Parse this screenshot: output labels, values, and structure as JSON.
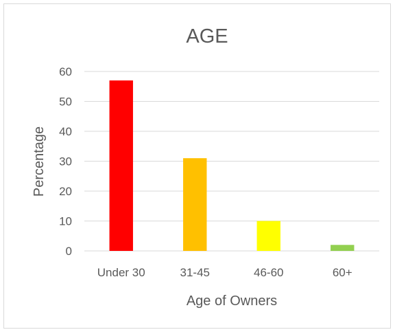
{
  "chart_data": {
    "type": "bar",
    "title": "AGE",
    "xlabel": "Age of Owners",
    "ylabel": "Percentage",
    "categories": [
      "Under 30",
      "31-45",
      "46-60",
      "60+"
    ],
    "values": [
      57,
      31,
      10,
      2
    ],
    "colors": [
      "#ff0000",
      "#ffc000",
      "#ffff00",
      "#92d050"
    ],
    "ylim": [
      0,
      60
    ],
    "yticks": [
      0,
      10,
      20,
      30,
      40,
      50,
      60
    ],
    "grid": true,
    "legend": "none"
  }
}
